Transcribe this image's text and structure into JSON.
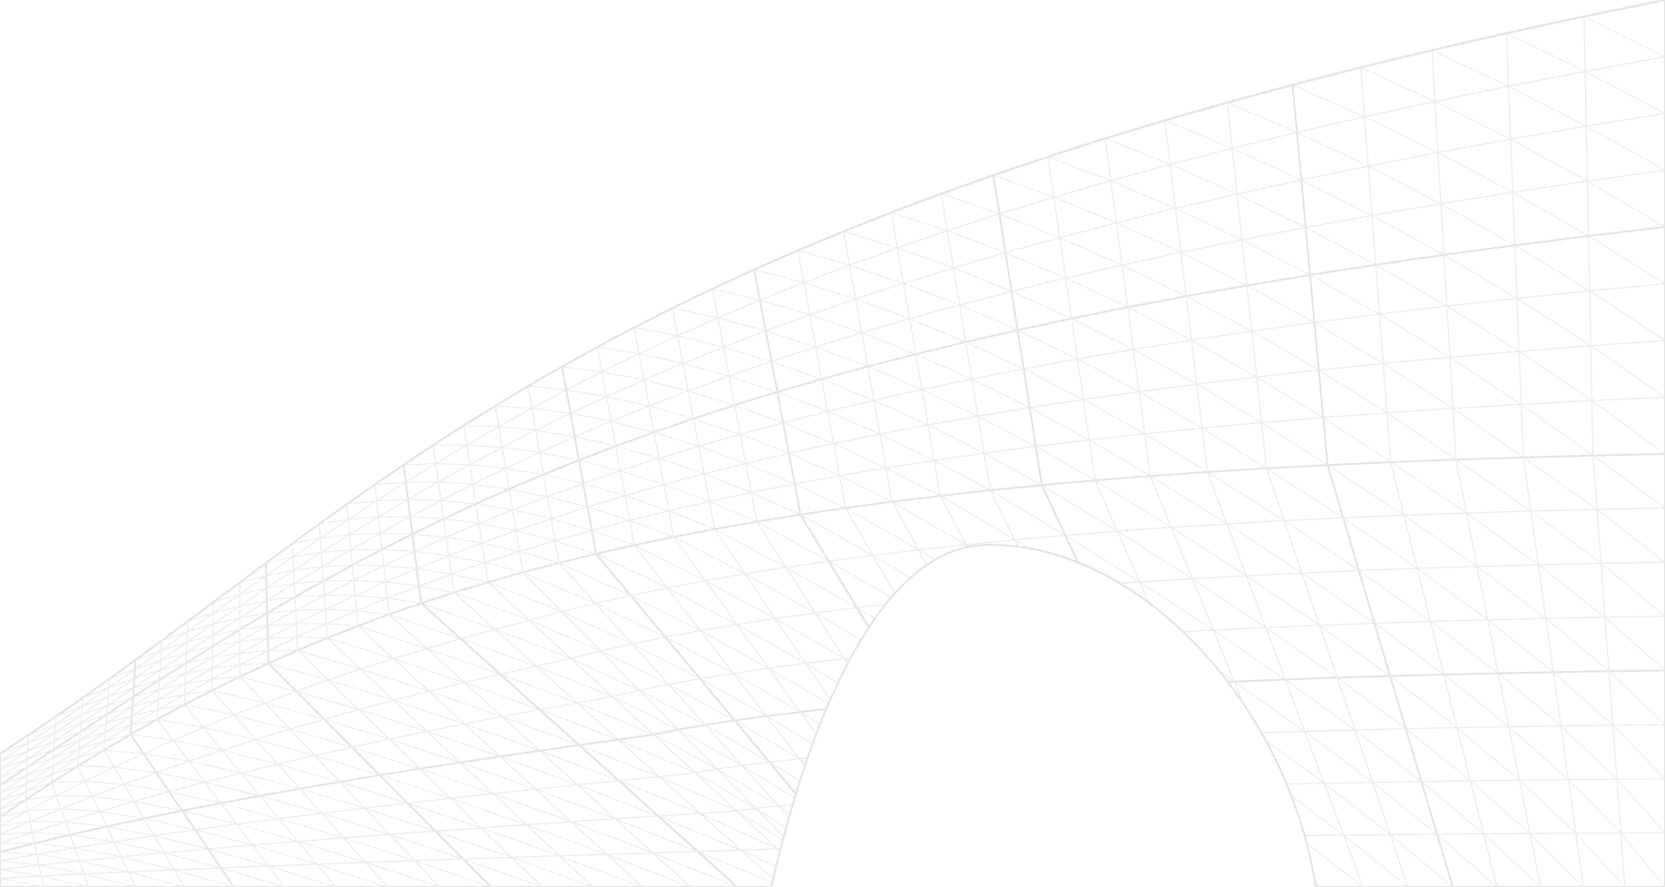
{
  "background_color": "#ffffff",
  "line_color": "#ebebeb",
  "line_color_strong": "#e3e3e3",
  "graphic": {
    "subject": "wireframe-mesh-surface-icon",
    "style": "triangulated-grid"
  }
}
